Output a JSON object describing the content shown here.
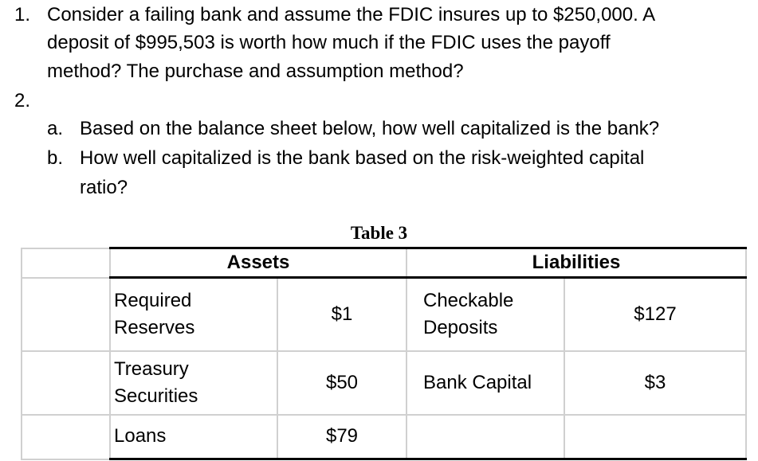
{
  "questions": [
    {
      "num": "1.",
      "lines": [
        "Consider a failing bank and assume the FDIC insures up to $250,000. A",
        "deposit of $995,503 is worth how much if the FDIC uses the payoff",
        "method? The purchase and assumption method?"
      ]
    },
    {
      "num": "2.",
      "parts": [
        {
          "letter": "a.",
          "lines": [
            "Based on the balance sheet below, how well capitalized is the bank?"
          ]
        },
        {
          "letter": "b.",
          "lines": [
            "How well capitalized is the bank based on the risk-weighted capital",
            "ratio?"
          ]
        }
      ]
    }
  ],
  "table": {
    "caption": "Table 3",
    "headers": [
      "Assets",
      "Liabilities"
    ],
    "rows": [
      {
        "asset": "Required Reserves",
        "asset_value": "$1",
        "liability": "Checkable Deposits",
        "liability_value": "$127"
      },
      {
        "asset": "Treasury Securities",
        "asset_value": "$50",
        "liability": "Bank Capital",
        "liability_value": "$3"
      },
      {
        "asset": "Loans",
        "asset_value": "$79",
        "liability": "",
        "liability_value": ""
      }
    ]
  }
}
